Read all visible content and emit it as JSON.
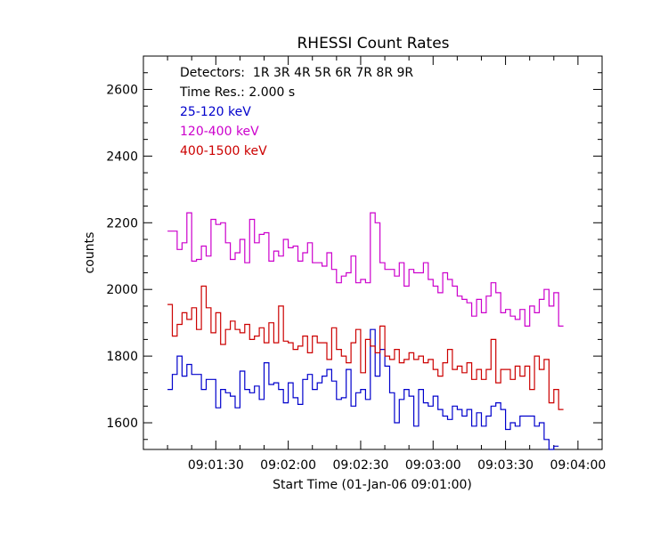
{
  "chart_data": {
    "type": "line",
    "title": "RHESSI Count Rates",
    "xlabel": "Start Time (01-Jan-06 09:01:00)",
    "ylabel": "counts",
    "x_unit": "seconds",
    "xlim": [
      0,
      190
    ],
    "ylim": [
      1520,
      2700
    ],
    "x_ticks": [
      {
        "value": 30,
        "label": "09:01:30"
      },
      {
        "value": 60,
        "label": "09:02:00"
      },
      {
        "value": 90,
        "label": "09:02:30"
      },
      {
        "value": 120,
        "label": "09:03:00"
      },
      {
        "value": 150,
        "label": "09:03:30"
      },
      {
        "value": 180,
        "label": "09:04:00"
      }
    ],
    "y_ticks": [
      1600,
      1800,
      2000,
      2200,
      2400,
      2600
    ],
    "annotations": [
      "Detectors:  1R 3R 4R 5R 6R 7R 8R 9R",
      "Time Res.: 2.000 s"
    ],
    "series": [
      {
        "name": "25-120 keV",
        "color": "#0000cc",
        "t0": 10,
        "dt": 2,
        "values": [
          1700,
          1745,
          1800,
          1740,
          1775,
          1745,
          1745,
          1700,
          1730,
          1730,
          1645,
          1700,
          1690,
          1680,
          1645,
          1755,
          1700,
          1690,
          1710,
          1670,
          1780,
          1715,
          1720,
          1700,
          1660,
          1720,
          1675,
          1655,
          1730,
          1745,
          1700,
          1720,
          1740,
          1760,
          1725,
          1670,
          1675,
          1760,
          1650,
          1690,
          1700,
          1670,
          1880,
          1740,
          1820,
          1770,
          1690,
          1600,
          1670,
          1700,
          1680,
          1590,
          1700,
          1660,
          1650,
          1680,
          1640,
          1620,
          1610,
          1650,
          1640,
          1620,
          1640,
          1590,
          1630,
          1590,
          1620,
          1650,
          1660,
          1640,
          1580,
          1600,
          1590,
          1620,
          1620,
          1620,
          1590,
          1600,
          1550,
          1520,
          1530
        ]
      },
      {
        "name": "120-400 keV",
        "color": "#cc00cc",
        "t0": 10,
        "dt": 2,
        "values": [
          2175,
          2175,
          2120,
          2140,
          2230,
          2085,
          2090,
          2130,
          2100,
          2210,
          2195,
          2200,
          2140,
          2090,
          2110,
          2150,
          2080,
          2210,
          2140,
          2165,
          2170,
          2085,
          2115,
          2100,
          2150,
          2125,
          2130,
          2085,
          2110,
          2140,
          2080,
          2080,
          2070,
          2110,
          2060,
          2020,
          2040,
          2050,
          2100,
          2020,
          2030,
          2020,
          2230,
          2200,
          2080,
          2060,
          2060,
          2040,
          2080,
          2010,
          2060,
          2050,
          2050,
          2080,
          2030,
          2010,
          1990,
          2050,
          2030,
          2010,
          1980,
          1970,
          1960,
          1920,
          1970,
          1930,
          1980,
          2020,
          1990,
          1930,
          1940,
          1920,
          1910,
          1940,
          1890,
          1950,
          1930,
          1970,
          2000,
          1950,
          1990,
          1890
        ]
      },
      {
        "name": "400-1500 keV",
        "color": "#cc0000",
        "t0": 10,
        "dt": 2,
        "values": [
          1955,
          1860,
          1895,
          1930,
          1910,
          1945,
          1880,
          2010,
          1945,
          1870,
          1930,
          1835,
          1880,
          1905,
          1880,
          1870,
          1895,
          1850,
          1860,
          1885,
          1840,
          1900,
          1840,
          1950,
          1845,
          1840,
          1820,
          1830,
          1860,
          1810,
          1860,
          1840,
          1840,
          1790,
          1885,
          1820,
          1800,
          1780,
          1840,
          1880,
          1750,
          1850,
          1830,
          1810,
          1890,
          1800,
          1790,
          1820,
          1780,
          1790,
          1810,
          1790,
          1800,
          1780,
          1790,
          1760,
          1740,
          1780,
          1820,
          1760,
          1770,
          1750,
          1780,
          1730,
          1760,
          1730,
          1760,
          1850,
          1720,
          1760,
          1760,
          1730,
          1770,
          1740,
          1770,
          1700,
          1800,
          1760,
          1790,
          1660,
          1700,
          1640
        ]
      }
    ]
  }
}
